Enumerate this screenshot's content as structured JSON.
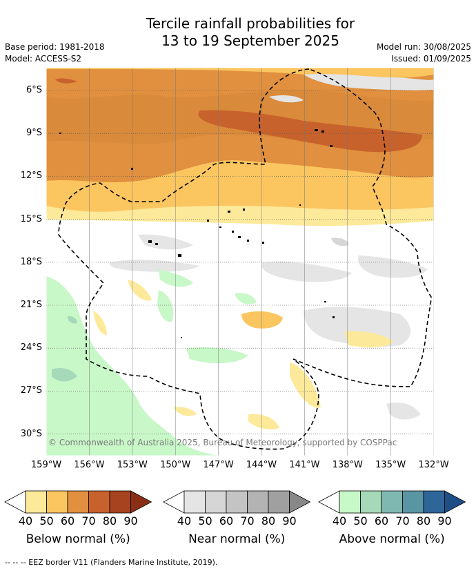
{
  "header": {
    "title_line1": "Tercile rainfall probabilities for",
    "title_line2": "13 to 19 September 2025",
    "base_period": "Base period: 1981-2018",
    "model": "Model: ACCESS-S2",
    "model_run": "Model run: 30/08/2025",
    "issued": "Issued: 01/09/2025"
  },
  "map": {
    "lat_labels": [
      "6°S",
      "9°S",
      "12°S",
      "15°S",
      "18°S",
      "21°S",
      "24°S",
      "27°S",
      "30°S"
    ],
    "lon_labels": [
      "159°W",
      "156°W",
      "153°W",
      "150°W",
      "147°W",
      "144°W",
      "141°W",
      "138°W",
      "135°W",
      "132°W"
    ],
    "copyright": "© Commonwealth of Australia 2025, Bureau of Meteorology, supported by COSPPac"
  },
  "legends": [
    {
      "title": "Below normal (%)",
      "ticks": [
        "40",
        "50",
        "60",
        "70",
        "80",
        "90"
      ],
      "colors": [
        "#fde99a",
        "#fbc560",
        "#e0903e",
        "#c8622c",
        "#a8431f",
        "#8a2e16"
      ]
    },
    {
      "title": "Near normal (%)",
      "ticks": [
        "40",
        "50",
        "60",
        "70",
        "80",
        "90"
      ],
      "colors": [
        "#e5e5e5",
        "#d6d6d6",
        "#c4c4c4",
        "#b3b3b3",
        "#a0a0a0",
        "#888888"
      ]
    },
    {
      "title": "Above normal (%)",
      "ticks": [
        "40",
        "50",
        "60",
        "70",
        "80",
        "90"
      ],
      "colors": [
        "#c8f7c8",
        "#a6d9b8",
        "#7fb8b0",
        "#5a95a3",
        "#2e6699",
        "#1d4e86"
      ]
    }
  ],
  "footnote": "--  --  -- EEZ border V11 (Flanders Marine Institute, 2019)."
}
